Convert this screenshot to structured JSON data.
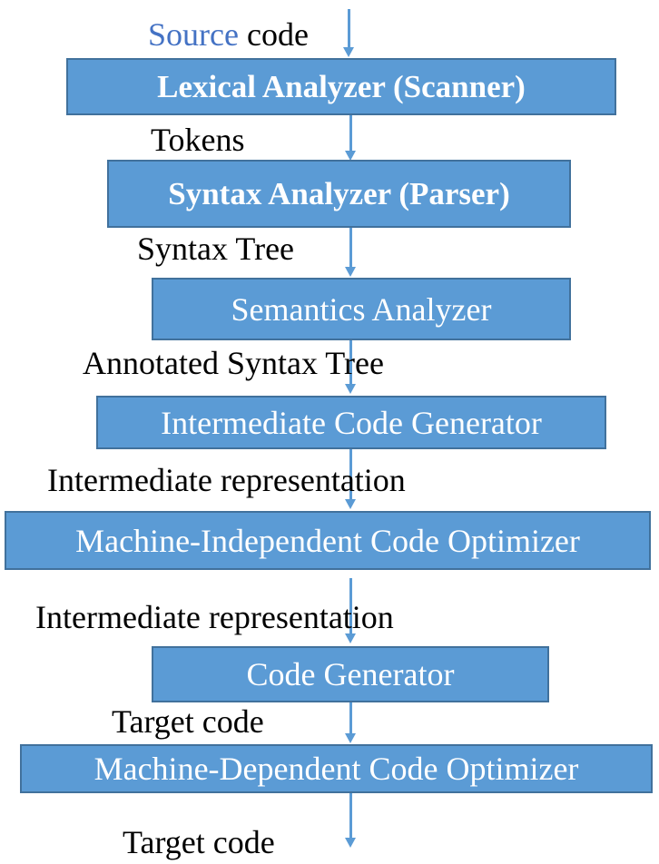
{
  "source_label": {
    "word1": "Source",
    "word2": " code"
  },
  "stages": [
    {
      "label": "Lexical Analyzer (Scanner)"
    },
    {
      "label": "Syntax Analyzer (Parser)"
    },
    {
      "label": "Semantics Analyzer"
    },
    {
      "label": "Intermediate Code Generator"
    },
    {
      "label": "Machine-Independent Code Optimizer"
    },
    {
      "label": "Code Generator"
    },
    {
      "label": "Machine-Dependent Code Optimizer"
    }
  ],
  "edges": [
    {
      "label": "Tokens"
    },
    {
      "label": "Syntax Tree"
    },
    {
      "label": "Annotated Syntax Tree"
    },
    {
      "label": "Intermediate representation"
    },
    {
      "label": "Intermediate representation"
    },
    {
      "label": "Target code"
    },
    {
      "label": "Target code"
    }
  ],
  "colors": {
    "box_fill": "#5b9bd5",
    "box_border": "#41719c",
    "box_text": "#ffffff",
    "arrow": "#5b9bd5",
    "source_word": "#4472c4",
    "label_text": "#000000"
  }
}
